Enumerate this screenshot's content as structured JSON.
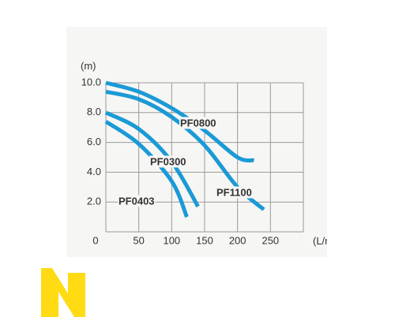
{
  "chart_data": {
    "type": "line",
    "title": "",
    "ylabel": "(m)",
    "xlabel": "(L/min)",
    "x_ticks": [
      0,
      50,
      100,
      150,
      200,
      250
    ],
    "x_tick_labels": [
      "0",
      "50",
      "100",
      "150",
      "200",
      "250"
    ],
    "y_ticks": [
      2,
      4,
      6,
      8,
      10
    ],
    "y_tick_labels": [
      "2.0",
      "4.0",
      "6.0",
      "8.0",
      "10.0"
    ],
    "xlim": [
      0,
      300
    ],
    "ylim": [
      0,
      10
    ],
    "grid": true,
    "series": [
      {
        "name": "PF0800",
        "x": [
          0,
          50,
          100,
          150,
          200,
          225
        ],
        "y": [
          10.0,
          9.4,
          8.3,
          6.8,
          5.0,
          4.8
        ]
      },
      {
        "name": "PF1100",
        "x": [
          0,
          50,
          100,
          150,
          200,
          240
        ],
        "y": [
          9.4,
          8.9,
          7.7,
          5.8,
          3.0,
          1.5
        ]
      },
      {
        "name": "PF0300",
        "x": [
          0,
          50,
          100,
          140
        ],
        "y": [
          8.0,
          6.9,
          4.7,
          1.7
        ]
      },
      {
        "name": "PF0403",
        "x": [
          0,
          50,
          100,
          123
        ],
        "y": [
          7.4,
          5.9,
          3.4,
          1.0
        ]
      }
    ],
    "line_color": "#1a9ad6",
    "grid_color": "#9a9a9a"
  },
  "logo": {
    "color": "#ffdb14"
  }
}
